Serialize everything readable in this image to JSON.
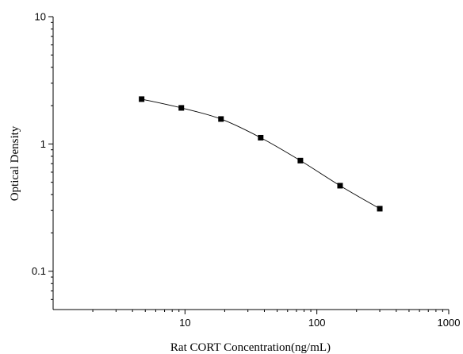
{
  "chart_data": {
    "type": "line",
    "title": "",
    "xlabel": "Rat CORT Concentration(ng/mL)",
    "ylabel": "Optical Density",
    "xscale": "log",
    "yscale": "log",
    "xlim": [
      1,
      1000
    ],
    "ylim": [
      0.05,
      10
    ],
    "x_ticks": [
      10,
      100,
      1000
    ],
    "x_tick_labels": [
      "10",
      "100",
      "1000"
    ],
    "y_ticks": [
      0.1,
      1,
      10
    ],
    "y_tick_labels": [
      "0.1",
      "1",
      "10"
    ],
    "grid": false,
    "legend": "none",
    "marker": "square",
    "color": "#000000",
    "series": [
      {
        "x": [
          4.69,
          9.38,
          18.75,
          37.5,
          75,
          150,
          300
        ],
        "y": [
          2.25,
          1.92,
          1.57,
          1.12,
          0.74,
          0.47,
          0.31
        ]
      }
    ]
  }
}
